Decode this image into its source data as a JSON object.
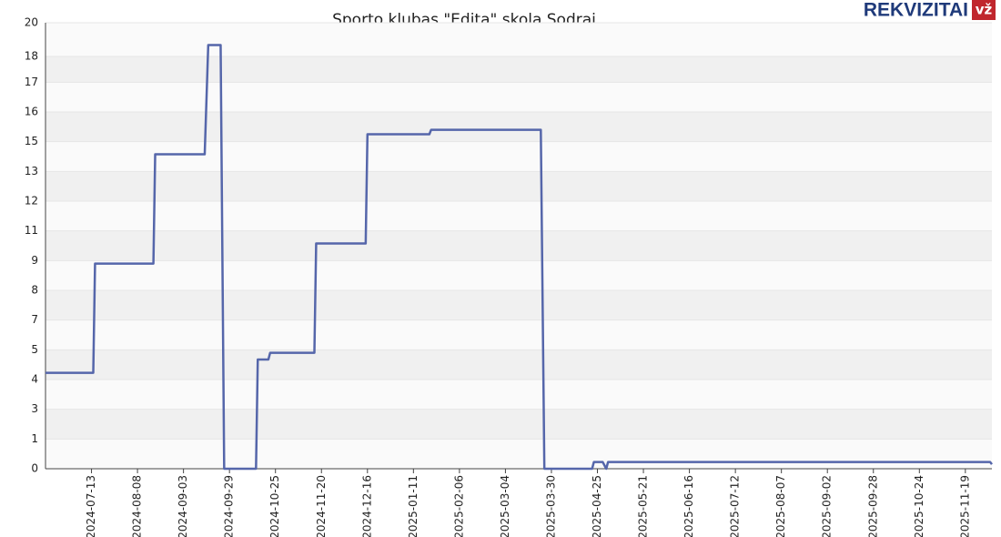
{
  "chart_data": {
    "type": "line",
    "title": "Sporto klubas \"Edita\" skola Sodrai",
    "logo": {
      "text": "REKVIZITAI",
      "badge": "vž"
    },
    "x": [
      "2024-06-17",
      "2024-07-14",
      "2024-07-15",
      "2024-08-17",
      "2024-08-18",
      "2024-09-15",
      "2024-09-17",
      "2024-09-24",
      "2024-09-26",
      "2024-10-14",
      "2024-10-15",
      "2024-10-21",
      "2024-10-22",
      "2024-11-16",
      "2024-11-17",
      "2024-12-15",
      "2024-12-16",
      "2025-01-20",
      "2025-01-21",
      "2025-03-24",
      "2025-03-26",
      "2025-04-22",
      "2025-04-23",
      "2025-04-28",
      "2025-04-30",
      "2025-05-01",
      "2025-12-03",
      "2025-12-04"
    ],
    "series": [
      {
        "color": "#5566aa",
        "values": [
          4.3,
          4.3,
          9.2,
          9.2,
          14.1,
          14.1,
          19,
          19,
          0,
          0,
          4.9,
          4.9,
          5.2,
          5.2,
          10.1,
          10.1,
          15,
          15,
          15.2,
          15.2,
          0,
          0,
          0.3,
          0.3,
          0,
          0.3,
          0.3,
          0.2
        ]
      }
    ],
    "xlim": [
      "2024-06-17",
      "2025-12-04"
    ],
    "xticks": [
      "2024-07-13",
      "2024-08-08",
      "2024-09-03",
      "2024-09-29",
      "2024-10-25",
      "2024-11-20",
      "2024-12-16",
      "2025-01-11",
      "2025-02-06",
      "2025-03-04",
      "2025-03-30",
      "2025-04-25",
      "2025-05-21",
      "2025-06-16",
      "2025-07-12",
      "2025-08-07",
      "2025-09-02",
      "2025-09-28",
      "2025-10-24",
      "2025-11-19"
    ],
    "ylim": [
      0,
      20
    ],
    "yticks": [
      0,
      {
        "value": 1.333,
        "label": "1"
      },
      {
        "value": 2.667,
        "label": "3"
      },
      4,
      {
        "value": 5.333,
        "label": "5"
      },
      {
        "value": 6.667,
        "label": "7"
      },
      8,
      {
        "value": 9.333,
        "label": "9"
      },
      {
        "value": 10.667,
        "label": "11"
      },
      12,
      {
        "value": 13.333,
        "label": "13"
      },
      {
        "value": 14.667,
        "label": "15"
      },
      16,
      {
        "value": 17.333,
        "label": "17"
      },
      {
        "value": 18.49,
        "label": "18"
      },
      20
    ],
    "grid": true
  }
}
